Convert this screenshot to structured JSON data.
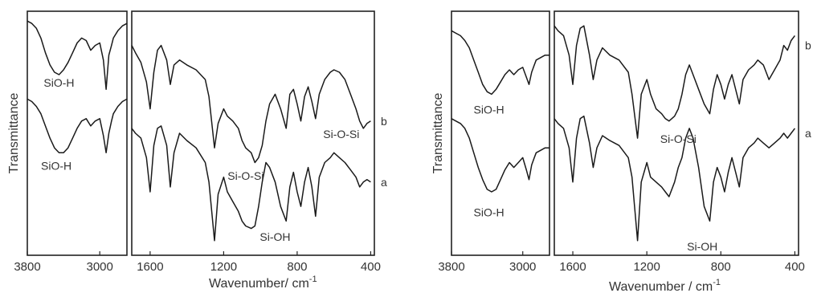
{
  "chart_data": [
    {
      "type": "line",
      "ylabel": "Transmittance",
      "xlabel": "Wavenumber/ cm",
      "xlabel_sup": "-1",
      "panels": [
        {
          "xlim": [
            3800,
            2700
          ],
          "xticks": [
            3800,
            3000
          ],
          "series": [
            {
              "name": "b",
              "x": [
                3800,
                3750,
                3700,
                3650,
                3600,
                3550,
                3500,
                3450,
                3400,
                3350,
                3300,
                3250,
                3200,
                3150,
                3100,
                3050,
                3000,
                2960,
                2930,
                2900,
                2870,
                2850,
                2800,
                2750,
                2700
              ],
              "y": [
                0.96,
                0.95,
                0.93,
                0.89,
                0.83,
                0.78,
                0.75,
                0.74,
                0.76,
                0.79,
                0.83,
                0.87,
                0.89,
                0.88,
                0.84,
                0.86,
                0.87,
                0.8,
                0.68,
                0.82,
                0.86,
                0.89,
                0.92,
                0.94,
                0.95
              ]
            },
            {
              "name": "a",
              "x": [
                3800,
                3750,
                3700,
                3650,
                3600,
                3550,
                3500,
                3450,
                3400,
                3350,
                3300,
                3250,
                3200,
                3150,
                3100,
                3050,
                3000,
                2960,
                2930,
                2900,
                2870,
                2850,
                2800,
                2750,
                2700
              ],
              "y": [
                0.64,
                0.63,
                0.61,
                0.58,
                0.53,
                0.48,
                0.44,
                0.42,
                0.42,
                0.44,
                0.48,
                0.52,
                0.55,
                0.56,
                0.53,
                0.55,
                0.56,
                0.49,
                0.42,
                0.5,
                0.55,
                0.58,
                0.61,
                0.63,
                0.64
              ]
            }
          ],
          "annotations": [
            {
              "text": "SiO-H",
              "x": 3450,
              "y": 0.69
            },
            {
              "text": "SiO-H",
              "x": 3480,
              "y": 0.35
            }
          ]
        },
        {
          "xlim": [
            1700,
            380
          ],
          "xticks": [
            1600,
            1200,
            800,
            400
          ],
          "series": [
            {
              "name": "b",
              "x": [
                1700,
                1680,
                1650,
                1620,
                1600,
                1580,
                1560,
                1540,
                1510,
                1490,
                1470,
                1440,
                1400,
                1350,
                1300,
                1280,
                1250,
                1230,
                1200,
                1180,
                1150,
                1120,
                1100,
                1080,
                1050,
                1030,
                1010,
                990,
                970,
                950,
                920,
                890,
                860,
                840,
                820,
                800,
                780,
                760,
                740,
                720,
                700,
                680,
                650,
                620,
                600,
                570,
                540,
                510,
                480,
                460,
                440,
                420,
                400
              ],
              "y": [
                0.86,
                0.83,
                0.79,
                0.71,
                0.6,
                0.75,
                0.84,
                0.86,
                0.8,
                0.7,
                0.78,
                0.8,
                0.78,
                0.76,
                0.72,
                0.65,
                0.44,
                0.54,
                0.6,
                0.57,
                0.55,
                0.52,
                0.47,
                0.44,
                0.42,
                0.38,
                0.4,
                0.45,
                0.55,
                0.62,
                0.66,
                0.6,
                0.52,
                0.66,
                0.68,
                0.62,
                0.55,
                0.65,
                0.69,
                0.63,
                0.56,
                0.66,
                0.72,
                0.75,
                0.76,
                0.75,
                0.72,
                0.66,
                0.6,
                0.55,
                0.52,
                0.54,
                0.55
              ]
            },
            {
              "name": "a",
              "x": [
                1700,
                1680,
                1650,
                1620,
                1600,
                1580,
                1560,
                1540,
                1510,
                1490,
                1470,
                1440,
                1400,
                1350,
                1300,
                1280,
                1250,
                1230,
                1200,
                1180,
                1150,
                1120,
                1100,
                1080,
                1050,
                1030,
                1010,
                990,
                970,
                950,
                920,
                890,
                860,
                840,
                820,
                800,
                780,
                760,
                740,
                720,
                700,
                680,
                650,
                620,
                600,
                570,
                540,
                510,
                480,
                460,
                440,
                420,
                400
              ],
              "y": [
                0.52,
                0.5,
                0.48,
                0.4,
                0.26,
                0.45,
                0.52,
                0.53,
                0.45,
                0.28,
                0.42,
                0.5,
                0.47,
                0.44,
                0.38,
                0.3,
                0.06,
                0.25,
                0.32,
                0.26,
                0.22,
                0.18,
                0.14,
                0.12,
                0.11,
                0.12,
                0.2,
                0.3,
                0.38,
                0.36,
                0.3,
                0.2,
                0.14,
                0.28,
                0.34,
                0.26,
                0.2,
                0.3,
                0.36,
                0.28,
                0.16,
                0.32,
                0.38,
                0.4,
                0.42,
                0.4,
                0.38,
                0.35,
                0.32,
                0.28,
                0.3,
                0.31,
                0.3
              ]
            }
          ],
          "annotations": [
            {
              "text": "Si-O-Si",
              "x": 1080,
              "y": 0.31
            },
            {
              "text": "Si-O-Si",
              "x": 560,
              "y": 0.48
            },
            {
              "text": "Si-OH",
              "x": 920,
              "y": 0.06
            }
          ],
          "series_labels": [
            {
              "text": "b",
              "y": 0.55
            },
            {
              "text": "a",
              "y": 0.3
            }
          ]
        }
      ]
    },
    {
      "type": "line",
      "ylabel": "Transmittance",
      "xlabel": "Wavenumber / cm",
      "xlabel_sup": "-1",
      "panels": [
        {
          "xlim": [
            3800,
            2700
          ],
          "xticks": [
            3800,
            3000
          ],
          "series": [
            {
              "name": "b",
              "x": [
                3800,
                3750,
                3700,
                3650,
                3600,
                3550,
                3500,
                3450,
                3400,
                3350,
                3300,
                3250,
                3200,
                3150,
                3100,
                3050,
                3000,
                2960,
                2930,
                2900,
                2870,
                2850,
                2800,
                2750,
                2700
              ],
              "y": [
                0.92,
                0.91,
                0.9,
                0.88,
                0.85,
                0.8,
                0.75,
                0.7,
                0.67,
                0.66,
                0.68,
                0.71,
                0.74,
                0.76,
                0.74,
                0.76,
                0.77,
                0.73,
                0.7,
                0.75,
                0.78,
                0.8,
                0.81,
                0.82,
                0.82
              ]
            },
            {
              "name": "a",
              "x": [
                3800,
                3750,
                3700,
                3650,
                3600,
                3550,
                3500,
                3450,
                3400,
                3350,
                3300,
                3250,
                3200,
                3150,
                3100,
                3050,
                3000,
                2960,
                2930,
                2900,
                2870,
                2850,
                2800,
                2750,
                2700
              ],
              "y": [
                0.56,
                0.55,
                0.54,
                0.52,
                0.48,
                0.42,
                0.36,
                0.31,
                0.27,
                0.26,
                0.27,
                0.31,
                0.35,
                0.38,
                0.36,
                0.38,
                0.4,
                0.35,
                0.31,
                0.37,
                0.4,
                0.42,
                0.43,
                0.44,
                0.44
              ]
            }
          ],
          "annotations": [
            {
              "text": "SiO-H",
              "x": 3380,
              "y": 0.58
            },
            {
              "text": "SiO-H",
              "x": 3380,
              "y": 0.16
            }
          ]
        },
        {
          "xlim": [
            1700,
            380
          ],
          "xticks": [
            1600,
            1200,
            800,
            400
          ],
          "series": [
            {
              "name": "b",
              "x": [
                1700,
                1680,
                1650,
                1620,
                1600,
                1580,
                1560,
                1540,
                1510,
                1490,
                1470,
                1440,
                1400,
                1350,
                1300,
                1280,
                1250,
                1230,
                1200,
                1180,
                1150,
                1120,
                1100,
                1080,
                1050,
                1030,
                1010,
                990,
                970,
                950,
                920,
                890,
                860,
                840,
                820,
                800,
                780,
                760,
                740,
                720,
                700,
                680,
                650,
                620,
                600,
                570,
                540,
                510,
                480,
                460,
                440,
                420,
                400
              ],
              "y": [
                0.94,
                0.92,
                0.9,
                0.82,
                0.7,
                0.86,
                0.93,
                0.94,
                0.82,
                0.72,
                0.8,
                0.85,
                0.82,
                0.8,
                0.75,
                0.66,
                0.48,
                0.66,
                0.72,
                0.66,
                0.6,
                0.58,
                0.56,
                0.55,
                0.57,
                0.6,
                0.66,
                0.74,
                0.78,
                0.74,
                0.68,
                0.62,
                0.58,
                0.68,
                0.74,
                0.7,
                0.64,
                0.7,
                0.74,
                0.68,
                0.62,
                0.72,
                0.76,
                0.78,
                0.8,
                0.78,
                0.72,
                0.76,
                0.8,
                0.86,
                0.84,
                0.88,
                0.9
              ]
            },
            {
              "name": "a",
              "x": [
                1700,
                1680,
                1650,
                1620,
                1600,
                1580,
                1560,
                1540,
                1510,
                1490,
                1470,
                1440,
                1400,
                1350,
                1300,
                1280,
                1250,
                1230,
                1200,
                1180,
                1150,
                1120,
                1100,
                1080,
                1050,
                1030,
                1010,
                990,
                970,
                950,
                920,
                890,
                860,
                840,
                820,
                800,
                780,
                760,
                740,
                720,
                700,
                680,
                650,
                620,
                600,
                570,
                540,
                510,
                480,
                460,
                440,
                420,
                400
              ],
              "y": [
                0.56,
                0.54,
                0.52,
                0.44,
                0.3,
                0.48,
                0.56,
                0.57,
                0.46,
                0.36,
                0.44,
                0.49,
                0.47,
                0.45,
                0.4,
                0.32,
                0.06,
                0.3,
                0.38,
                0.32,
                0.3,
                0.28,
                0.26,
                0.24,
                0.3,
                0.36,
                0.4,
                0.48,
                0.52,
                0.48,
                0.36,
                0.2,
                0.14,
                0.3,
                0.36,
                0.32,
                0.26,
                0.34,
                0.4,
                0.34,
                0.28,
                0.4,
                0.44,
                0.46,
                0.48,
                0.46,
                0.44,
                0.46,
                0.48,
                0.5,
                0.48,
                0.5,
                0.52
              ]
            }
          ],
          "annotations": [
            {
              "text": "Si-O-Si",
              "x": 1030,
              "y": 0.46
            },
            {
              "text": "Si-OH",
              "x": 900,
              "y": 0.02
            }
          ],
          "series_labels": [
            {
              "text": "b",
              "y": 0.86
            },
            {
              "text": "a",
              "y": 0.5
            }
          ]
        }
      ]
    }
  ]
}
